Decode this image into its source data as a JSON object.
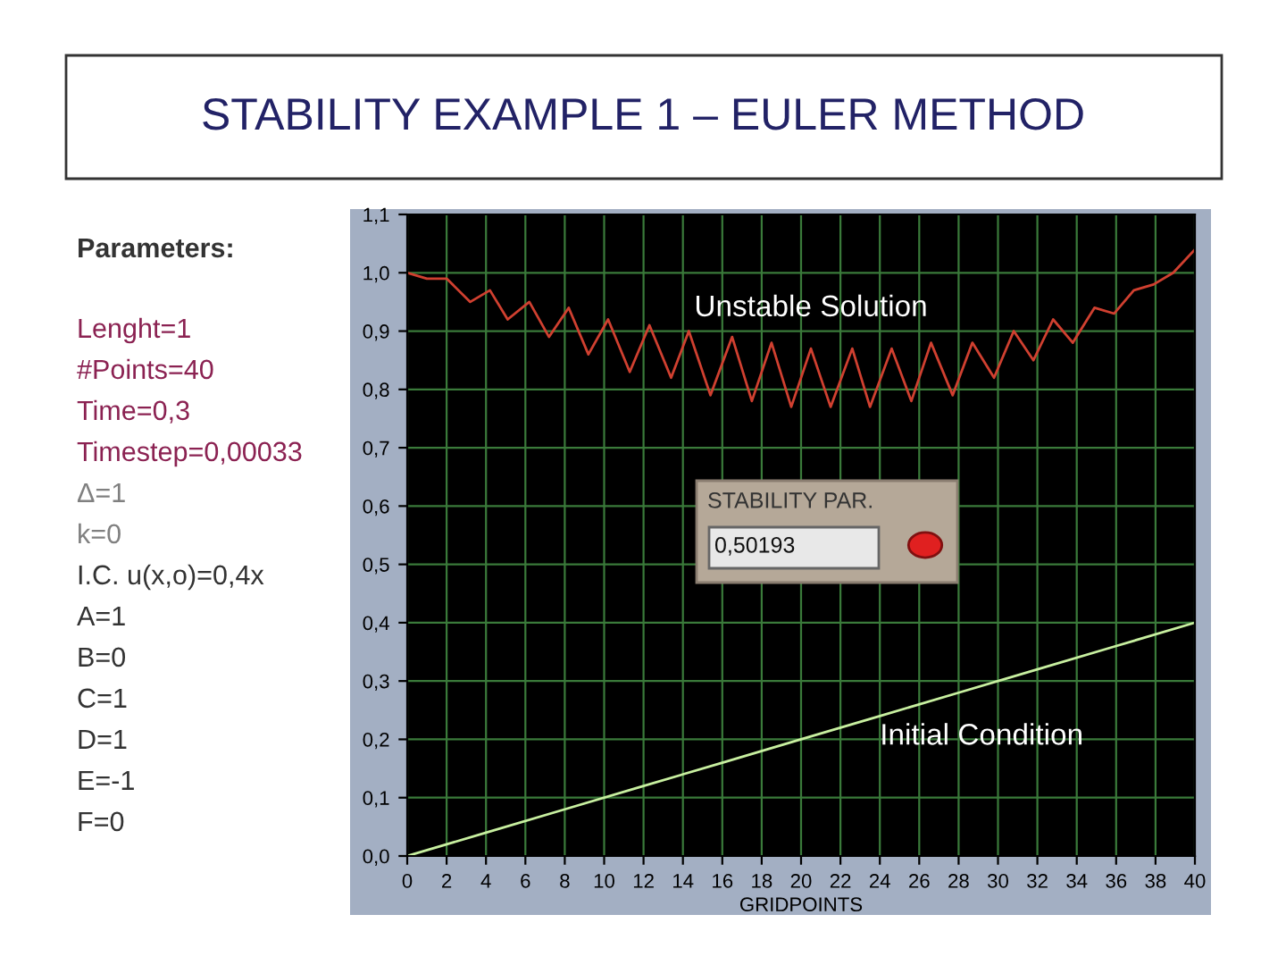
{
  "chart_data": {
    "type": "line",
    "title": "STABILITY EXAMPLE 1 – EULER METHOD",
    "xlabel": "GRIDPOINTS",
    "annotations": [
      "Parameters:",
      "Lenght=1",
      "#Points=40",
      "Time=0,3",
      "Timestep=0,00033",
      "Δ=1",
      "k=0",
      "I.C. u(x,o)=0,4x",
      "A=1",
      "B=0",
      "C=1",
      "D=1",
      "E=-1",
      "F=0",
      "STABILITY PAR.",
      "0,50193"
    ],
    "series": [
      {
        "name": "Unstable Solution",
        "color": "#d04030",
        "x": [
          0,
          1,
          2,
          3.2,
          4.2,
          5.1,
          6.2,
          7.2,
          8.2,
          9.2,
          10.2,
          11.3,
          12.3,
          13.4,
          14.3,
          15.4,
          16.5,
          17.5,
          18.5,
          19.5,
          20.5,
          21.5,
          22.6,
          23.5,
          24.6,
          25.6,
          26.6,
          27.7,
          28.7,
          29.8,
          30.8,
          31.8,
          32.8,
          33.8,
          34.9,
          35.9,
          36.9,
          37.9,
          38.9,
          40
        ],
        "values": [
          1.0,
          0.99,
          0.99,
          0.95,
          0.97,
          0.92,
          0.95,
          0.89,
          0.94,
          0.86,
          0.92,
          0.83,
          0.91,
          0.82,
          0.9,
          0.79,
          0.89,
          0.78,
          0.88,
          0.77,
          0.87,
          0.77,
          0.87,
          0.77,
          0.87,
          0.78,
          0.88,
          0.79,
          0.88,
          0.82,
          0.9,
          0.85,
          0.92,
          0.88,
          0.94,
          0.93,
          0.97,
          0.98,
          1.0,
          1.04
        ]
      },
      {
        "name": "Initial Condition",
        "color": "#c8f0a0",
        "x": [
          0,
          4,
          8,
          12,
          16,
          20,
          24,
          28,
          32,
          36,
          40
        ],
        "values": [
          0,
          0.04,
          0.08,
          0.12,
          0.16,
          0.2,
          0.24,
          0.28,
          0.32,
          0.36,
          0.4
        ]
      }
    ],
    "xlim": [
      0,
      40
    ],
    "xticks": [
      0,
      2,
      4,
      6,
      8,
      10,
      12,
      14,
      16,
      18,
      20,
      22,
      24,
      26,
      28,
      30,
      32,
      34,
      36,
      38,
      40
    ],
    "ylim": [
      0,
      1.1
    ],
    "yticks": [
      {
        "value": 0,
        "label": "0,0"
      },
      {
        "value": 0.1,
        "label": "0,1"
      },
      {
        "value": 0.2,
        "label": "0,2"
      },
      {
        "value": 0.3,
        "label": "0,3"
      },
      {
        "value": 0.4,
        "label": "0,4"
      },
      {
        "value": 0.5,
        "label": "0,5"
      },
      {
        "value": 0.6,
        "label": "0,6"
      },
      {
        "value": 0.7,
        "label": "0,7"
      },
      {
        "value": 0.8,
        "label": "0,8"
      },
      {
        "value": 0.9,
        "label": "0,9"
      },
      {
        "value": 1.0,
        "label": "1,0"
      },
      {
        "value": 1.1,
        "label": "1,1"
      }
    ],
    "grid": true,
    "marker": "none",
    "line_style": "solid"
  }
}
